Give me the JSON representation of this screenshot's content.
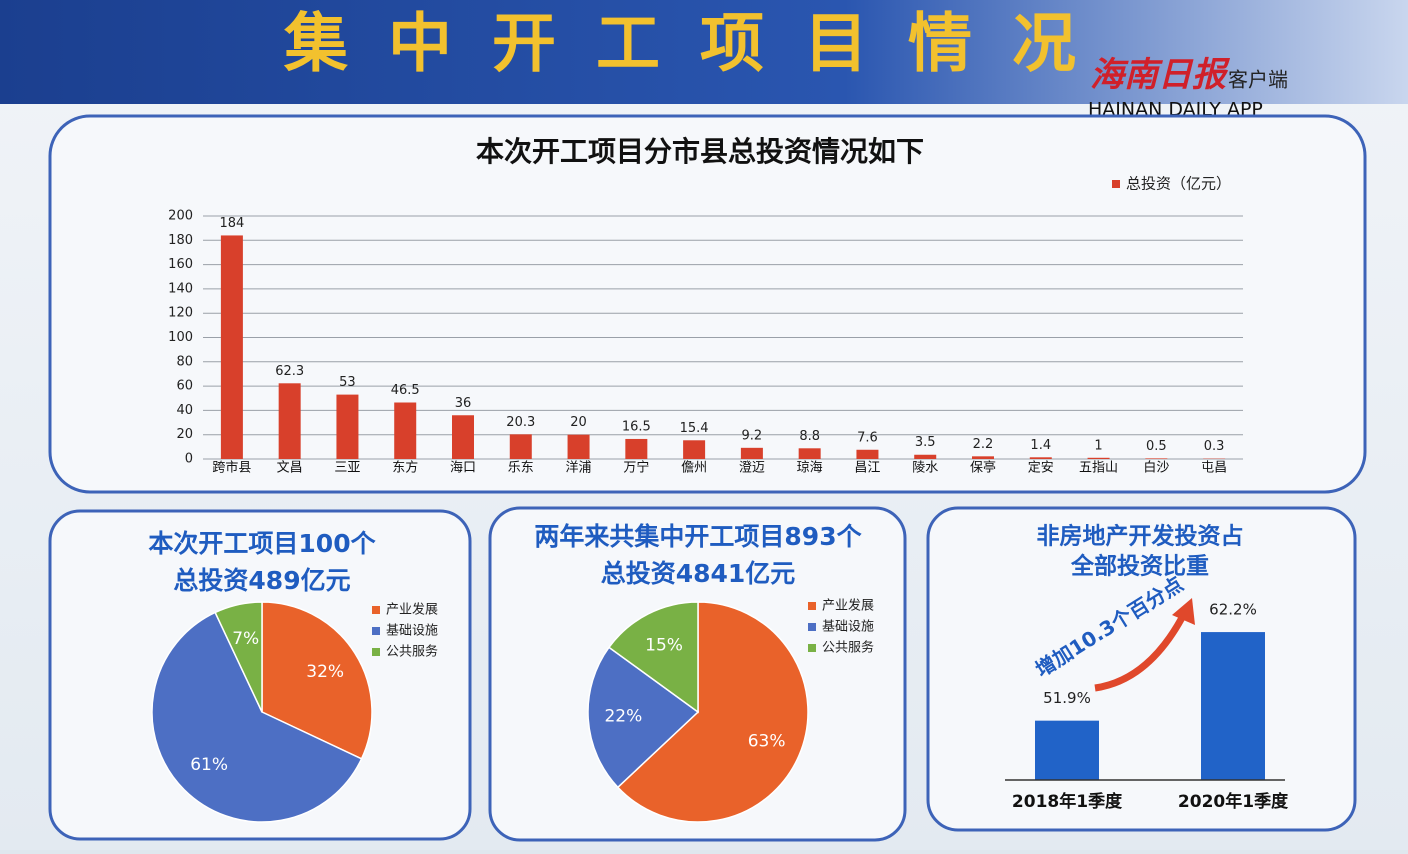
{
  "header": {
    "title": "集中开工项目情况",
    "brand": "海南日报",
    "brand_suffix": "客户端",
    "brand_en": "HAINAN DAILY APP"
  },
  "chart_data": [
    {
      "type": "bar",
      "title": "本次开工项目分市县总投资情况如下",
      "categories": [
        "跨市县",
        "文昌",
        "三亚",
        "东方",
        "海口",
        "乐东",
        "洋浦",
        "万宁",
        "儋州",
        "澄迈",
        "琼海",
        "昌江",
        "陵水",
        "保亭",
        "定安",
        "五指山",
        "白沙",
        "屯昌"
      ],
      "series": [
        {
          "name": "总投资（亿元）",
          "color": "#d8402b",
          "values": [
            184,
            62.3,
            53,
            46.5,
            36,
            20.3,
            20,
            16.5,
            15.4,
            9.2,
            8.8,
            7.6,
            3.5,
            2.2,
            1.4,
            1,
            0.5,
            0.3
          ]
        }
      ],
      "ylim": [
        0,
        200
      ],
      "yticks": [
        0,
        20,
        40,
        60,
        80,
        100,
        120,
        140,
        160,
        180,
        200
      ],
      "grid": true,
      "legend": "top-right"
    },
    {
      "type": "pie",
      "title": "本次开工项目100个",
      "subtitle": "总投资489亿元",
      "categories": [
        "产业发展",
        "基础设施",
        "公共服务"
      ],
      "colors": [
        "#e9622a",
        "#4d6fc4",
        "#79b145"
      ],
      "values": [
        32,
        61,
        7
      ],
      "value_labels": [
        "32%",
        "61%",
        "7%"
      ]
    },
    {
      "type": "pie",
      "title": "两年来共集中开工项目893个",
      "subtitle": "总投资4841亿元",
      "categories": [
        "产业发展",
        "基础设施",
        "公共服务"
      ],
      "colors": [
        "#e9622a",
        "#4d6fc4",
        "#79b145"
      ],
      "values": [
        63,
        22,
        15
      ],
      "value_labels": [
        "63%",
        "22%",
        "15%"
      ]
    },
    {
      "type": "column",
      "title": "非房地产开发投资占",
      "subtitle": "全部投资比重",
      "categories": [
        "2018年1季度",
        "2020年1季度"
      ],
      "values": [
        51.9,
        62.2
      ],
      "value_labels": [
        "51.9%",
        "62.2%"
      ],
      "color": "#2163c8",
      "ylim": [
        45,
        65
      ],
      "annotation": "增加10.3个百分点"
    }
  ]
}
